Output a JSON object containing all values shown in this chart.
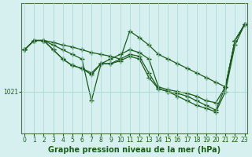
{
  "title": "Graphe pression niveau de la mer (hPa)",
  "background_color": "#d6f0f0",
  "line_color": "#1a5c1a",
  "marker": "+",
  "marker_size": 4,
  "marker_linewidth": 1.0,
  "grid_color": "#a8d4d4",
  "xlim": [
    0,
    23
  ],
  "hours": [
    0,
    1,
    2,
    3,
    4,
    5,
    6,
    7,
    8,
    9,
    10,
    11,
    12,
    13,
    14,
    15,
    16,
    17,
    18,
    19,
    20,
    21,
    22,
    23
  ],
  "series": [
    [
      1025.5,
      1026.5,
      1026.5,
      1026.3,
      1026.0,
      1025.8,
      1025.5,
      1025.2,
      1025.0,
      1024.8,
      1024.5,
      1027.5,
      1026.8,
      1026.0,
      1025.0,
      1024.5,
      1024.0,
      1023.5,
      1023.0,
      1022.5,
      1022.0,
      1021.5,
      1026.5,
      1028.2
    ],
    [
      1025.5,
      1026.5,
      1026.5,
      1026.0,
      1025.5,
      1025.0,
      1024.5,
      1020.0,
      1024.0,
      1024.5,
      1025.0,
      1025.5,
      1025.2,
      1024.5,
      1021.5,
      1021.2,
      1021.0,
      1020.8,
      1020.5,
      1020.0,
      1019.8,
      1021.5,
      1026.5,
      1028.2
    ],
    [
      1025.5,
      1026.5,
      1026.5,
      1025.5,
      1024.5,
      1023.8,
      1023.5,
      1023.0,
      1024.0,
      1024.0,
      1024.5,
      1025.0,
      1024.8,
      1023.0,
      1021.3,
      1021.0,
      1020.8,
      1020.5,
      1020.0,
      1019.5,
      1019.0,
      1021.5,
      1026.5,
      1028.2
    ],
    [
      1025.5,
      1026.5,
      1026.5,
      1025.5,
      1024.5,
      1023.8,
      1023.5,
      1022.8,
      1024.0,
      1024.0,
      1024.3,
      1024.8,
      1024.5,
      1022.5,
      1021.3,
      1021.0,
      1020.5,
      1020.0,
      1019.5,
      1019.2,
      1018.8,
      1021.0,
      1026.0,
      1028.2
    ]
  ],
  "ylim_min": 1016.5,
  "ylim_max": 1030.5,
  "yticks": [
    1021
  ],
  "ytick_labels": [
    "1021"
  ],
  "fontsize_label": 7,
  "fontsize_tick": 5.5,
  "linewidth": 0.9,
  "spine_color": "#507050"
}
